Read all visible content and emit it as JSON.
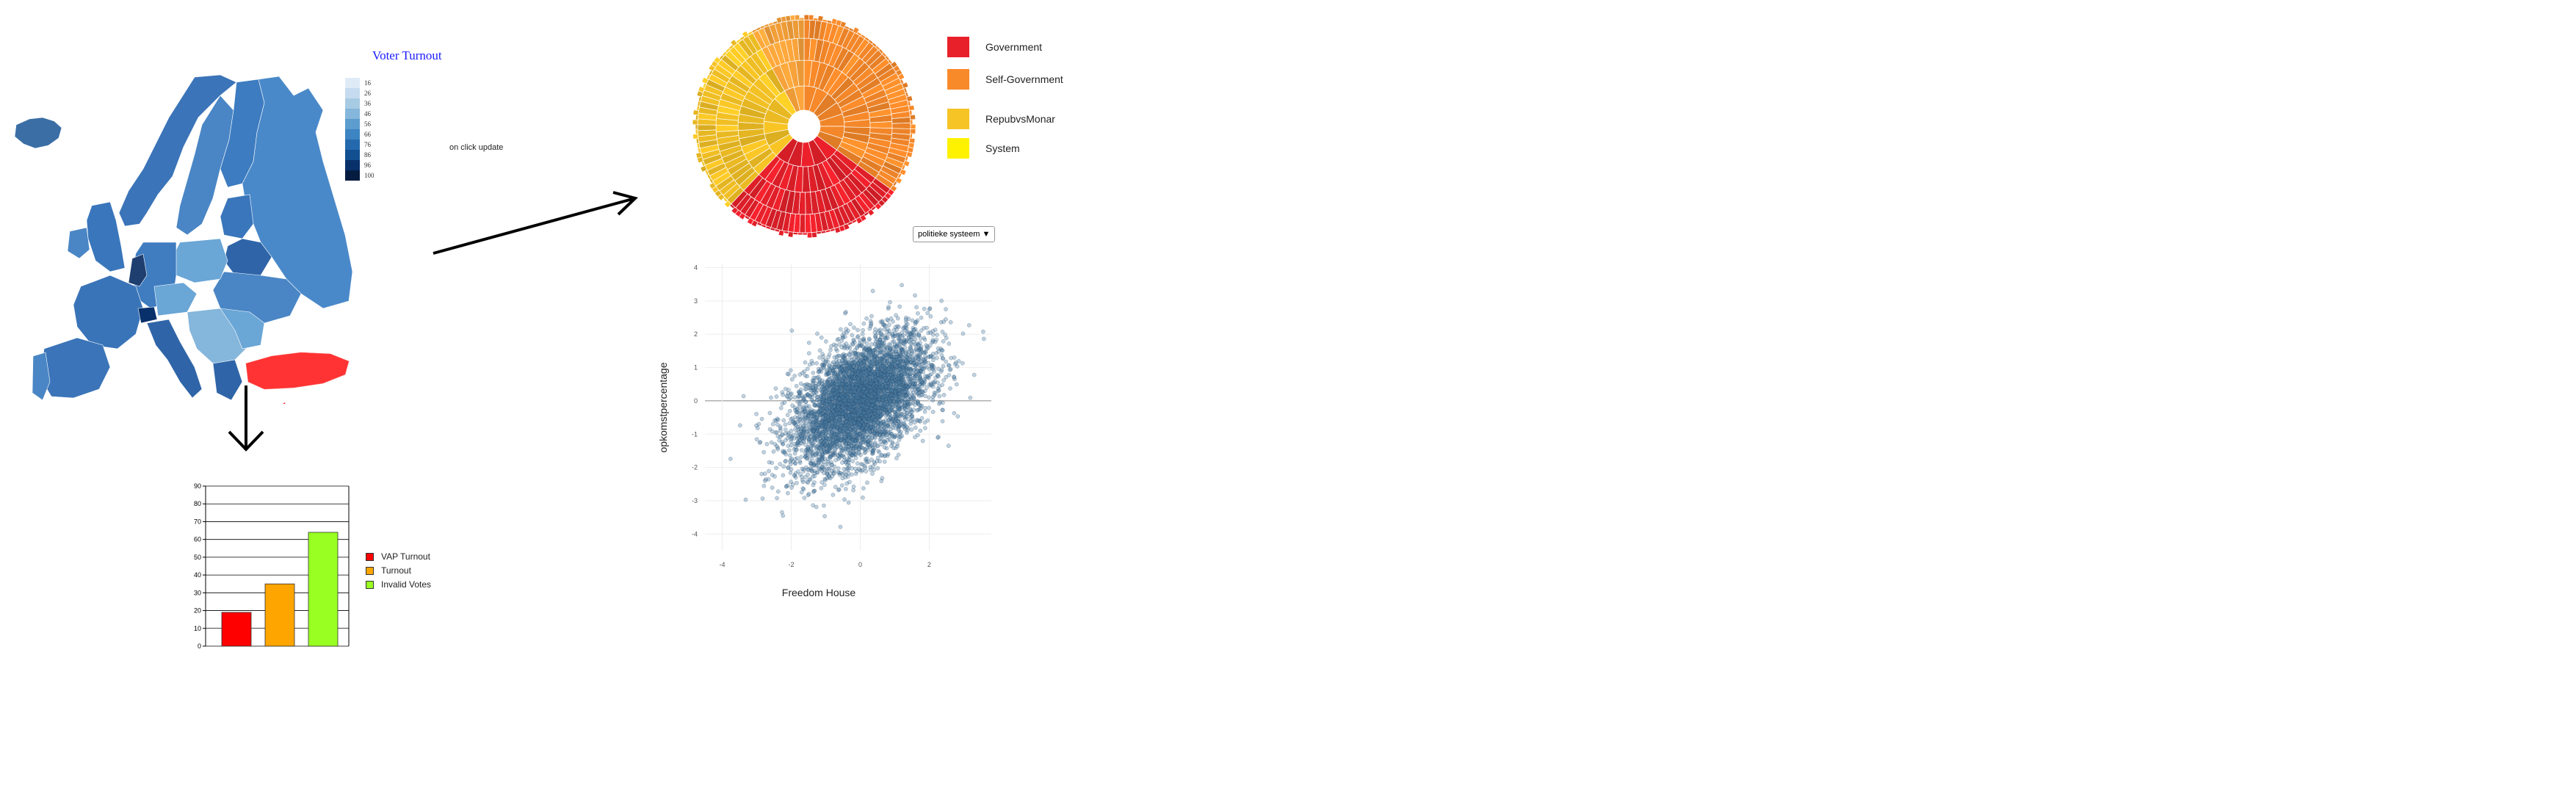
{
  "map": {
    "title": "Voter Turnout",
    "legend_ticks": [
      "16",
      "26",
      "36",
      "46",
      "56",
      "66",
      "76",
      "86",
      "96",
      "100"
    ],
    "legend_colors": [
      "#deebf7",
      "#c6dbef",
      "#a7cbe3",
      "#85b6db",
      "#5c9ccf",
      "#3d84c2",
      "#2469ad",
      "#114f90",
      "#08306b",
      "#041c40"
    ],
    "highlight_color": "#ff3333",
    "base_color": "#4a86c5"
  },
  "annotation": {
    "on_click": "on click update"
  },
  "sunburst": {
    "legend": [
      {
        "label": "Government",
        "color": "#e8202a"
      },
      {
        "label": "Self-Government",
        "color": "#f98a2a"
      },
      {
        "label": "RepubvsMonar",
        "color": "#f7c425"
      },
      {
        "label": "System",
        "color": "#fff200"
      }
    ]
  },
  "dropdown": {
    "value": "politieke systeem"
  },
  "bar_chart": {
    "type": "bar",
    "categories": [
      "VAP Turnout",
      "Turnout",
      "Invalid Votes"
    ],
    "values": [
      19,
      35,
      64
    ],
    "colors": [
      "#ff0000",
      "#ffa500",
      "#99ff22"
    ],
    "ylim": [
      0,
      90
    ],
    "yticks": [
      "0",
      "10",
      "20",
      "30",
      "40",
      "50",
      "60",
      "70",
      "80",
      "90"
    ]
  },
  "chart_data": {
    "type": "scatter",
    "xlabel": "Freedom House",
    "ylabel": "opkomstpercentage",
    "xticks": [
      "-4",
      "-2",
      "0",
      "2"
    ],
    "yticks": [
      "4",
      "3",
      "2",
      "1",
      "0",
      "-1",
      "-2",
      "-3",
      "-4"
    ],
    "xlim": [
      -4.5,
      3.8
    ],
    "ylim": [
      -4.5,
      4.1
    ],
    "distribution": "bivariate normal, mean (0,0), sd ≈ 1, positive correlation",
    "point_color": "#4b7fa6",
    "n_points_approx": 5000
  }
}
